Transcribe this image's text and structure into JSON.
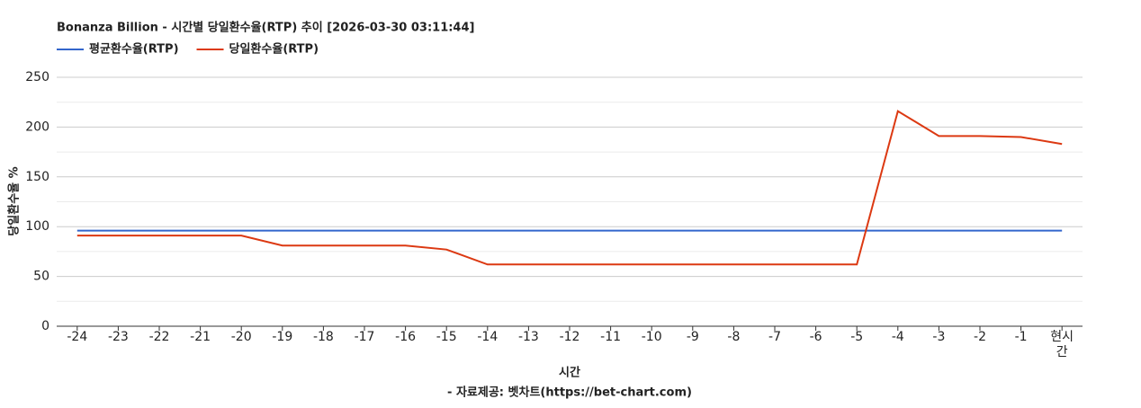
{
  "chart_data": {
    "type": "line",
    "title": "Bonanza Billion - 시간별 당일환수율(RTP) 추이 [2026-03-30 03:11:44]",
    "x_label": "시간",
    "y_label": "당일환수율 %",
    "footer": "- 자료제공: 벳차트(https://bet-chart.com)",
    "categories": [
      "-24",
      "-23",
      "-22",
      "-21",
      "-20",
      "-19",
      "-18",
      "-17",
      "-16",
      "-15",
      "-14",
      "-13",
      "-12",
      "-11",
      "-10",
      "-9",
      "-8",
      "-7",
      "-6",
      "-5",
      "-4",
      "-3",
      "-2",
      "-1",
      "현시간"
    ],
    "series": [
      {
        "name": "평균환수율(RTP)",
        "color": "#3366cc",
        "values": [
          96,
          96,
          96,
          96,
          96,
          96,
          96,
          96,
          96,
          96,
          96,
          96,
          96,
          96,
          96,
          96,
          96,
          96,
          96,
          96,
          96,
          96,
          96,
          96,
          96
        ]
      },
      {
        "name": "당일환수율(RTP)",
        "color": "#dc3912",
        "values": [
          91,
          91,
          91,
          91,
          91,
          81,
          81,
          81,
          81,
          77,
          62,
          62,
          62,
          62,
          62,
          62,
          62,
          62,
          62,
          62,
          216,
          191,
          191,
          190,
          183
        ]
      }
    ],
    "ylim": [
      0,
      250
    ],
    "yticks": [
      0,
      50,
      100,
      150,
      200,
      250
    ],
    "grid": true,
    "legend": "top-left"
  }
}
